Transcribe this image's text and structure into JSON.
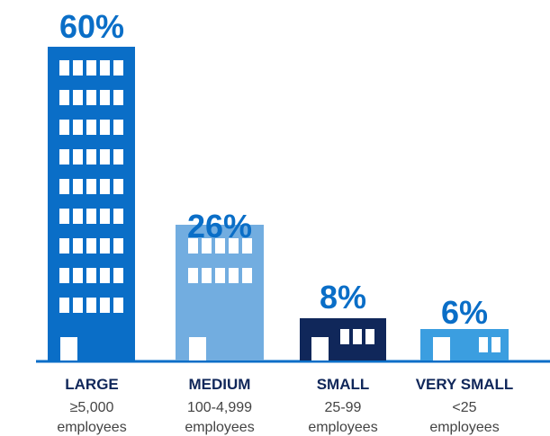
{
  "chart_data": {
    "type": "bar",
    "title": "",
    "xlabel": "",
    "ylabel": "",
    "ylim": [
      0,
      60
    ],
    "unit": "%",
    "categories": [
      "LARGE",
      "MEDIUM",
      "SMALL",
      "VERY SMALL"
    ],
    "values": [
      60,
      26,
      8,
      6
    ],
    "value_labels": [
      "60%",
      "26%",
      "8%",
      "6%"
    ],
    "ranges": [
      "≥5,000",
      "100-4,999",
      "25-99",
      "<25"
    ],
    "unit_labels": [
      "employees",
      "employees",
      "employees",
      "employees"
    ],
    "colors": {
      "large": "#0a6ec7",
      "medium": "#72ade0",
      "small": "#10275a",
      "very_small": "#3b9ee0",
      "label": "#0a6ec7",
      "category_text": "#10275a",
      "sub_text": "#444444",
      "window": "#ffffff",
      "baseline": "#0a6ec7"
    }
  }
}
